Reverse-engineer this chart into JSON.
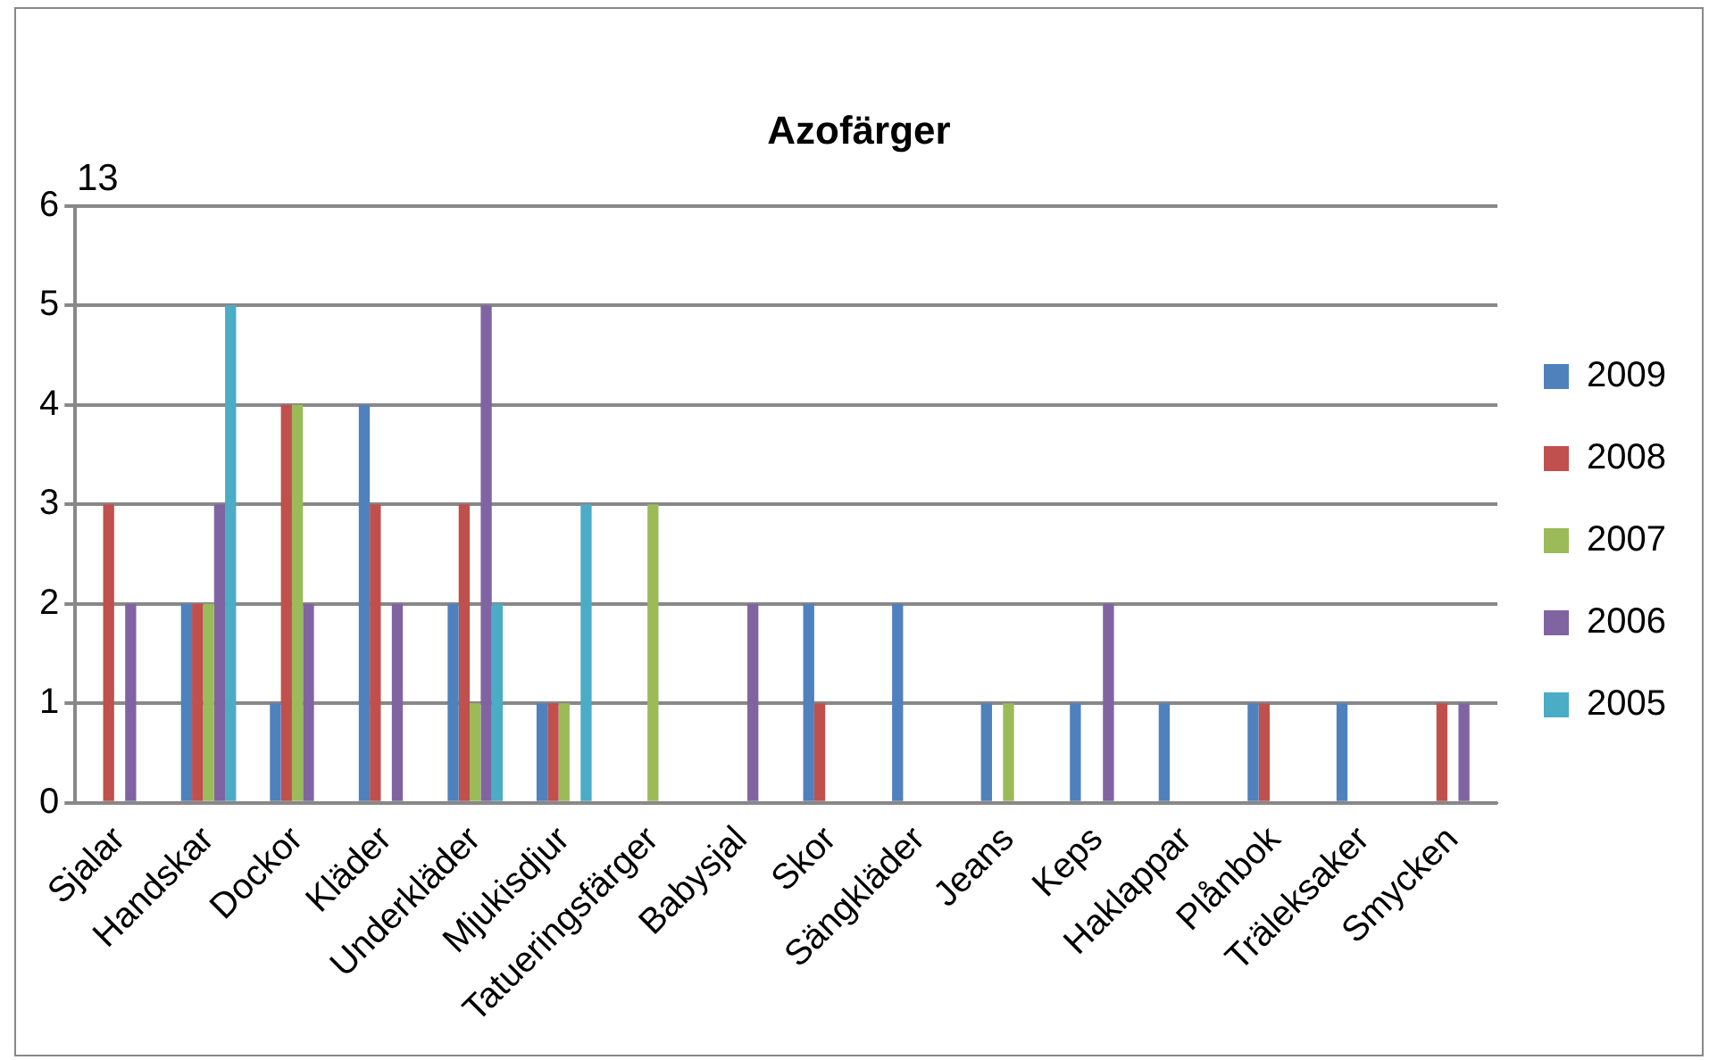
{
  "chart_data": {
    "type": "bar",
    "title": "Azofärger",
    "categories": [
      "Sjalar",
      "Handskar",
      "Dockor",
      "Kläder",
      "Underkläder",
      "Mjukisdjur",
      "Tatueringsfärger",
      "Babysjal",
      "Skor",
      "Sängkläder",
      "Jeans",
      "Keps",
      "Haklappar",
      "Plånbok",
      "Träleksaker",
      "Smycken"
    ],
    "series": [
      {
        "name": "2009",
        "color": "#4f81bd",
        "values": [
          null,
          2,
          1,
          4,
          2,
          1,
          null,
          null,
          2,
          2,
          1,
          1,
          1,
          1,
          1,
          null
        ],
        "value_labels": [
          "13",
          null,
          null,
          null,
          null,
          null,
          null,
          null,
          null,
          null,
          null,
          null,
          null,
          null,
          null,
          null
        ]
      },
      {
        "name": "2008",
        "color": "#c0504d",
        "values": [
          3,
          2,
          4,
          3,
          3,
          1,
          null,
          null,
          1,
          null,
          null,
          null,
          null,
          1,
          null,
          1
        ]
      },
      {
        "name": "2007",
        "color": "#9bbb59",
        "values": [
          null,
          2,
          4,
          null,
          1,
          1,
          3,
          null,
          null,
          null,
          1,
          null,
          null,
          null,
          null,
          null
        ]
      },
      {
        "name": "2006",
        "color": "#8064a2",
        "values": [
          2,
          3,
          2,
          2,
          5,
          null,
          null,
          2,
          null,
          null,
          null,
          2,
          null,
          null,
          null,
          1
        ]
      },
      {
        "name": "2005",
        "color": "#4bacc6",
        "values": [
          null,
          5,
          null,
          null,
          2,
          3,
          null,
          null,
          null,
          null,
          null,
          null,
          null,
          null,
          null,
          null
        ]
      }
    ],
    "ylim": [
      0,
      6
    ],
    "yticks": [
      0,
      1,
      2,
      3,
      4,
      5,
      6
    ],
    "grid": "y",
    "legend": "right"
  }
}
